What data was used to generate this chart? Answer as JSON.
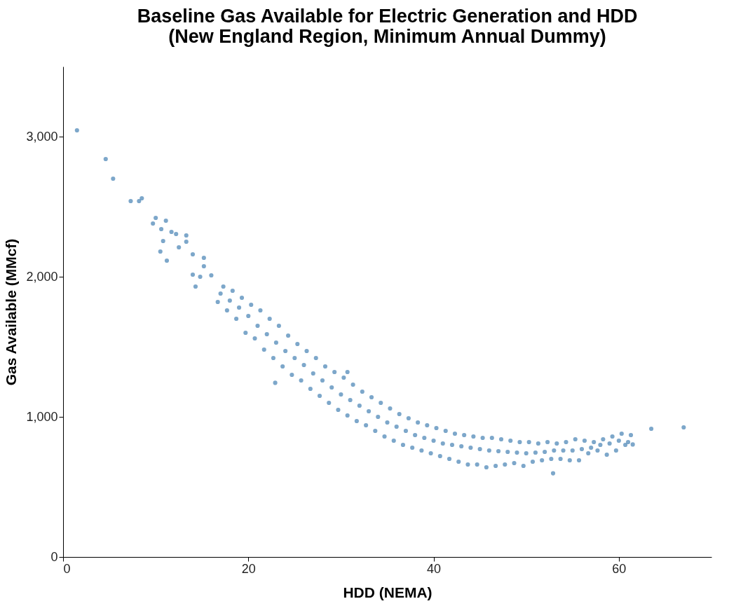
{
  "chart_data": {
    "type": "scatter",
    "title": "Baseline Gas Available for Electric Generation and HDD\n(New England Region, Minimum Annual Dummy)",
    "xlabel": "HDD (NEMA)",
    "ylabel": "Gas Available (MMcf)",
    "color": "#4682b4",
    "marker": "circle",
    "grid": false,
    "xlim": [
      0,
      70
    ],
    "xticks": [
      0,
      20,
      40,
      60
    ],
    "ylim": [
      0,
      3500
    ],
    "yticks": [
      0,
      {
        "value": 1000,
        "label": "1,000"
      },
      {
        "value": 2000,
        "label": "2,000"
      },
      {
        "value": 3000,
        "label": "3,000"
      }
    ],
    "x": [
      1.5,
      4.6,
      5.4,
      7.3,
      8.2,
      8.5,
      10.0,
      9.7,
      10.6,
      11.1,
      10.8,
      10.5,
      11.2,
      11.7,
      12.2,
      12.5,
      13.3,
      13.3,
      14.0,
      14.0,
      14.3,
      15.2,
      15.2,
      14.8,
      16.0,
      17.3,
      17,
      16.7,
      18.3,
      18,
      17.7,
      19.3,
      19,
      18.7,
      20.3,
      20,
      19.7,
      21.3,
      21,
      20.7,
      22.3,
      22,
      21.7,
      23.3,
      23,
      22.7,
      24.3,
      24,
      23.7,
      25.3,
      25,
      24.7,
      26.3,
      26,
      25.7,
      27.3,
      27,
      26.7,
      28.3,
      28,
      27.7,
      29.3,
      29,
      28.7,
      30.3,
      30,
      29.7,
      31.3,
      31,
      30.7,
      32.3,
      32,
      31.7,
      33.3,
      33,
      32.7,
      34.3,
      34,
      33.7,
      35.3,
      35,
      34.7,
      36.3,
      36,
      35.7,
      37.3,
      37,
      36.7,
      38.3,
      38,
      37.7,
      39.3,
      39,
      38.7,
      40.3,
      40,
      39.7,
      41.3,
      41,
      40.7,
      42.3,
      42,
      41.7,
      43.3,
      43,
      42.7,
      44.3,
      44,
      43.7,
      45.3,
      45,
      44.7,
      46.3,
      46,
      45.7,
      47.3,
      47,
      46.7,
      48.3,
      48,
      47.7,
      49.3,
      49,
      48.7,
      50.3,
      50,
      49.7,
      51.3,
      51,
      50.7,
      52.3,
      52,
      51.7,
      53.3,
      53,
      52.7,
      54.3,
      54,
      53.7,
      55.3,
      55,
      54.7,
      56.3,
      56,
      55.7,
      57.3,
      57,
      56.7,
      58.3,
      58,
      57.7,
      59.3,
      59,
      58.7,
      60.3,
      60,
      59.7,
      61.3,
      61,
      60.7,
      22.9,
      30.7,
      52.9,
      61.5,
      63.5,
      67.0
    ],
    "values": [
      3045,
      2840,
      2700,
      2540,
      2540,
      2560,
      2420,
      2380,
      2340,
      2400,
      2255,
      2180,
      2115,
      2320,
      2305,
      2210,
      2295,
      2250,
      2160,
      2015,
      1930,
      2135,
      2075,
      2000,
      2010,
      1930,
      1880,
      1820,
      1900,
      1830,
      1760,
      1850,
      1780,
      1700,
      1800,
      1720,
      1600,
      1760,
      1650,
      1560,
      1700,
      1590,
      1480,
      1650,
      1530,
      1420,
      1580,
      1470,
      1360,
      1520,
      1420,
      1300,
      1470,
      1370,
      1260,
      1420,
      1310,
      1200,
      1360,
      1260,
      1150,
      1320,
      1210,
      1100,
      1280,
      1160,
      1050,
      1230,
      1120,
      1010,
      1180,
      1080,
      970,
      1140,
      1040,
      940,
      1100,
      1000,
      900,
      1060,
      960,
      860,
      1020,
      930,
      830,
      990,
      900,
      800,
      960,
      870,
      780,
      940,
      850,
      760,
      920,
      830,
      740,
      900,
      810,
      720,
      880,
      800,
      700,
      870,
      790,
      680,
      860,
      780,
      660,
      850,
      770,
      660,
      850,
      760,
      640,
      840,
      755,
      650,
      830,
      750,
      660,
      820,
      745,
      670,
      820,
      740,
      650,
      810,
      745,
      680,
      820,
      750,
      690,
      810,
      760,
      700,
      820,
      760,
      700,
      840,
      760,
      690,
      830,
      770,
      690,
      820,
      780,
      740,
      840,
      800,
      760,
      860,
      810,
      730,
      880,
      830,
      760,
      870,
      820,
      800,
      1243,
      1320,
      597,
      803,
      915,
      925
    ]
  }
}
